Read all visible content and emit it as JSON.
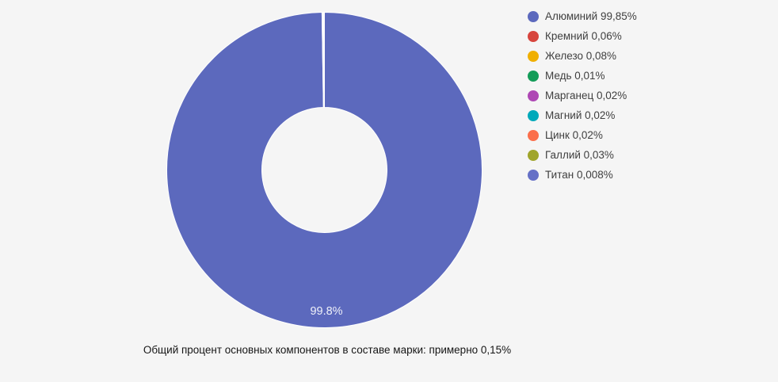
{
  "page": {
    "background": "#f5f5f5"
  },
  "chart_data": {
    "type": "pie",
    "donut": true,
    "start_angle_deg": -90,
    "direction": "clockwise",
    "categories": [
      "Алюминий",
      "Кремний",
      "Железо",
      "Медь",
      "Марганец",
      "Магний",
      "Цинк",
      "Галлий",
      "Титан"
    ],
    "values": [
      99.85,
      0.06,
      0.08,
      0.01,
      0.02,
      0.02,
      0.02,
      0.03,
      0.008
    ],
    "colors": [
      "#5c69bd",
      "#d7453d",
      "#f0af00",
      "#149c58",
      "#ae47b4",
      "#00a9ba",
      "#fb6f4b",
      "#a0a52b",
      "#6570c6"
    ],
    "slice_label": "99.8%",
    "separator_color": "#ffffff",
    "legend_position": "right"
  },
  "legend": {
    "items": [
      {
        "label": "Алюминий 99,85%",
        "color": "#5c69bd"
      },
      {
        "label": "Кремний 0,06%",
        "color": "#d7453d"
      },
      {
        "label": "Железо 0,08%",
        "color": "#f0af00"
      },
      {
        "label": "Медь 0,01%",
        "color": "#149c58"
      },
      {
        "label": "Марганец 0,02%",
        "color": "#ae47b4"
      },
      {
        "label": "Магний 0,02%",
        "color": "#00a9ba"
      },
      {
        "label": "Цинк 0,02%",
        "color": "#fb6f4b"
      },
      {
        "label": "Галлий 0,03%",
        "color": "#a0a52b"
      },
      {
        "label": "Титан 0,008%",
        "color": "#6570c6"
      }
    ]
  },
  "caption": {
    "text": "Общий процент основных компонентов в составе марки: примерно 0,15%"
  }
}
